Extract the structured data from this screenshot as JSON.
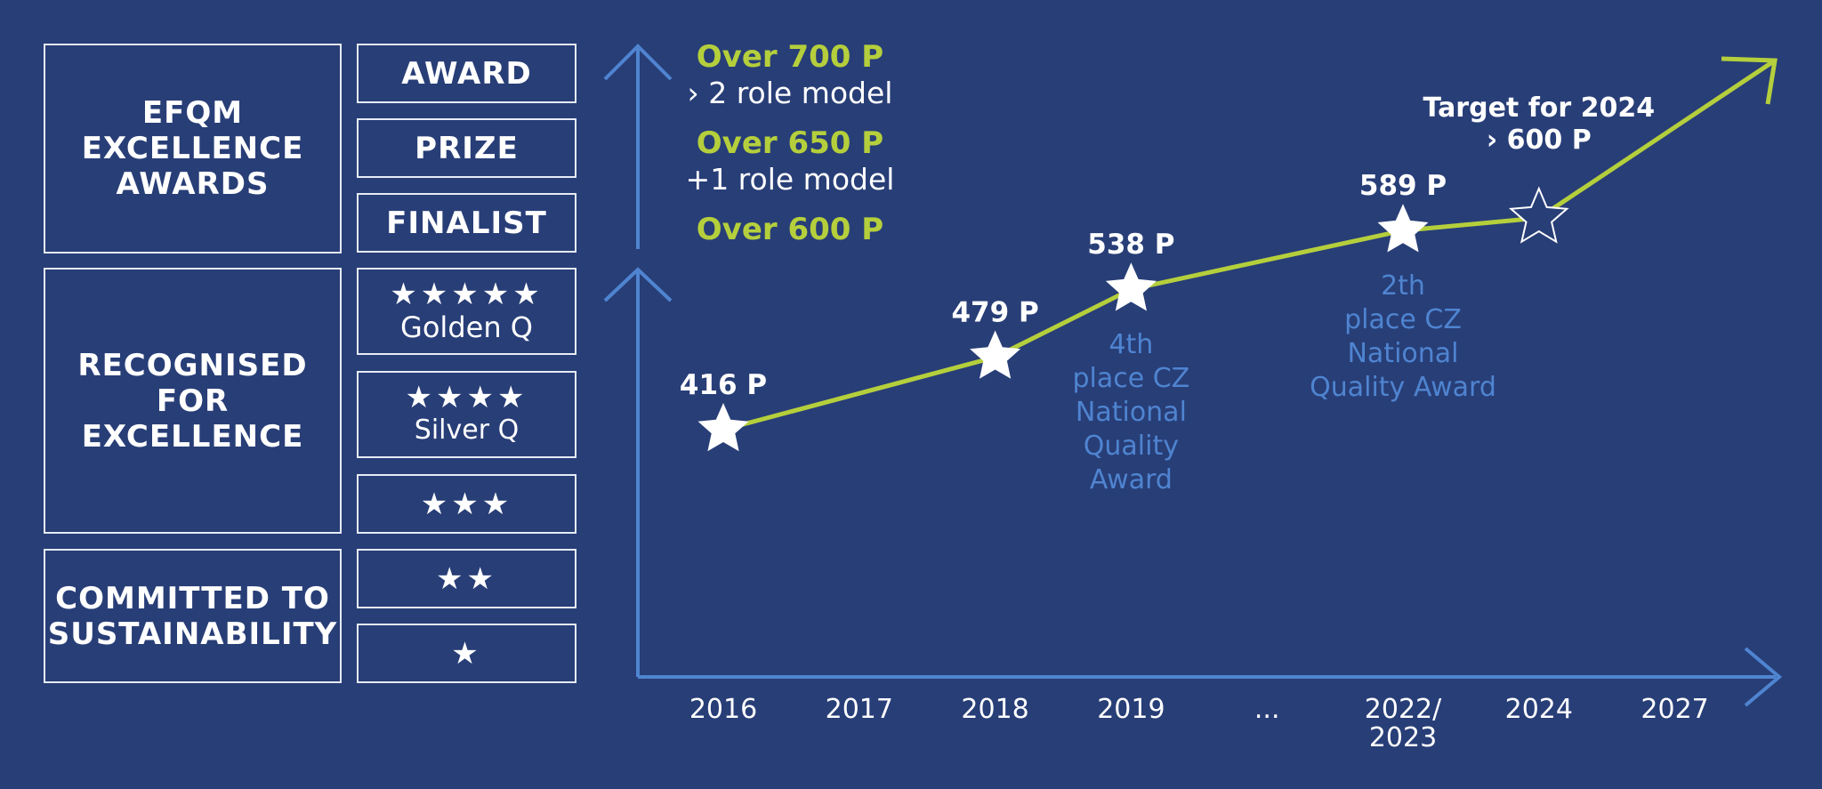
{
  "categories": {
    "efqm": "EFQM\nEXCELLENCE\nAWARDS",
    "recognised": "RECOGNISED FOR\nEXCELLENCE",
    "committed": "COMMITTED TO\nSUSTAINABILITY"
  },
  "levels": {
    "award": "AWARD",
    "prize": "PRIZE",
    "finalist": "FINALIST",
    "stars5": "★★★★★",
    "golden": "Golden Q",
    "stars4": "★★★★",
    "silver": "Silver Q",
    "stars3": "★★★",
    "stars2": "★★",
    "stars1": "★"
  },
  "chart_data": {
    "type": "line",
    "x": [
      "2016",
      "2017",
      "2018",
      "2019",
      "...",
      "2022/\n2023",
      "2024",
      "2027"
    ],
    "points": [
      {
        "x": "2016",
        "value": 416,
        "label": "416 P"
      },
      {
        "x": "2018",
        "value": 479,
        "label": "479 P"
      },
      {
        "x": "2019",
        "value": 538,
        "label": "538 P",
        "note": "4th\nplace CZ\nNational\nQuality\nAward"
      },
      {
        "x": "2022/\n2023",
        "value": 589,
        "label": "589 P",
        "note": "2th\nplace CZ\nNational\nQuality Award"
      },
      {
        "x": "2024",
        "value": 600,
        "label": "Target for 2024\n› 600 P",
        "target": true
      }
    ],
    "y_thresholds": [
      {
        "label": "Over 700 P",
        "sub": "› 2 role model"
      },
      {
        "label": "Over 650 P",
        "sub": "+1 role model"
      },
      {
        "label": "Over 600 P",
        "sub": ""
      }
    ],
    "colors": {
      "line": "#b5cf3c",
      "axis": "#4f84d0",
      "note": "#4f84d0",
      "background": "#283e77"
    }
  }
}
